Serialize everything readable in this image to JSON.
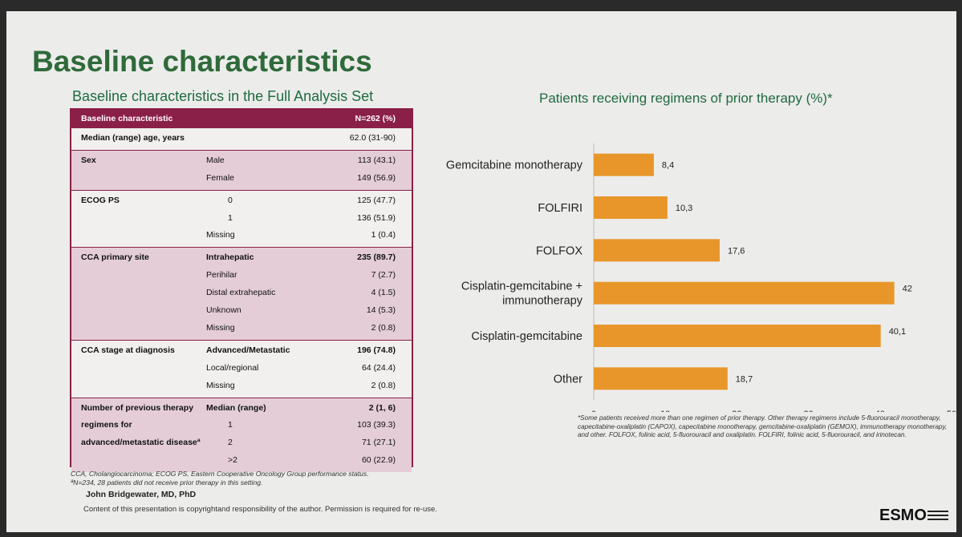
{
  "slide": {
    "title": "Baseline characteristics",
    "subtitle": "Baseline characteristics in the Full Analysis Set"
  },
  "table": {
    "header": {
      "col1": "Baseline characteristic",
      "col2": "N=262 (%)"
    },
    "sections": [
      {
        "label": [
          "Median (range) age, years"
        ],
        "rows": [
          {
            "sub": "",
            "val": "62.0 (31-90)"
          }
        ]
      },
      {
        "label": [
          "Sex"
        ],
        "rows": [
          {
            "sub": "Male",
            "val": "113 (43.1)"
          },
          {
            "sub": "Female",
            "val": "149 (56.9)"
          }
        ]
      },
      {
        "label": [
          "ECOG PS"
        ],
        "rows": [
          {
            "sub": "0",
            "val": "125 (47.7)"
          },
          {
            "sub": "1",
            "val": "136 (51.9)"
          },
          {
            "sub": "Missing",
            "val": "1 (0.4)"
          }
        ]
      },
      {
        "label": [
          "CCA primary site"
        ],
        "rows": [
          {
            "sub": "Intrahepatic",
            "val": "235 (89.7)"
          },
          {
            "sub": "Perihilar",
            "val": "7 (2.7)"
          },
          {
            "sub": "Distal extrahepatic",
            "val": "4 (1.5)"
          },
          {
            "sub": "Unknown",
            "val": "14 (5.3)"
          },
          {
            "sub": "Missing",
            "val": "2 (0.8)"
          }
        ]
      },
      {
        "label": [
          "CCA stage at diagnosis"
        ],
        "rows": [
          {
            "sub": "Advanced/Metastatic",
            "val": "196 (74.8)"
          },
          {
            "sub": "Local/regional",
            "val": "64 (24.4)"
          },
          {
            "sub": "Missing",
            "val": "2 (0.8)"
          }
        ]
      },
      {
        "label": [
          "Number of previous therapy",
          "regimens for",
          "advanced/metastatic diseaseª"
        ],
        "rows": [
          {
            "sub": "Median (range)",
            "val": "2 (1, 6)"
          },
          {
            "sub": "1",
            "val": "103 (39.3)"
          },
          {
            "sub": "2",
            "val": "71 (27.1)"
          },
          {
            "sub": ">2",
            "val": "60 (22.9)"
          }
        ]
      }
    ],
    "footnotes": [
      "CCA, Cholangiocarcinoma; ECOG PS, Eastern Cooperative Oncology Group performance status.",
      "ªN=234, 28 patients did not receive prior therapy in this setting."
    ]
  },
  "author": "John Bridgewater, MD, PhD",
  "copyright": "Content of this presentation is copyrightand responsibility of the author. Permission is required for re-use.",
  "chart_data": {
    "type": "bar",
    "orientation": "horizontal",
    "title": "Patients receiving regimens of prior therapy (%)*",
    "categories": [
      "Gemcitabine monotherapy",
      "FOLFIRI",
      "FOLFOX",
      "Cisplatin-gemcitabine + immunotherapy",
      "Cisplatin-gemcitabine",
      "Other"
    ],
    "values": [
      8.4,
      10.3,
      17.6,
      42,
      40.1,
      18.7
    ],
    "value_labels": [
      "8,4",
      "10,3",
      "17,6",
      "42",
      "40,1",
      "18,7"
    ],
    "xlim": [
      0,
      50
    ],
    "xticks": [
      0,
      10,
      20,
      30,
      40,
      50
    ],
    "bar_color": "#e8962a",
    "grid": false,
    "note": "*Some patients received more than one regimen of prior therapy. Other therapy regimens include 5-fluorouracil monotherapy, capecitabine-oxaliplatin (CAPOX), capecitabine monotherapy, gemcitabine-oxaliplatin (GEMOX), immunotherapy monotherapy, and other. FOLFOX, folinic acid, 5-fluorouracil and oxaliplatin. FOLFIRI, folinic acid, 5-fluorouracil, and irinotecan."
  },
  "brand": {
    "logo": "ESMO",
    "accent": "#8a2048",
    "title_color": "#2f6a3a"
  }
}
